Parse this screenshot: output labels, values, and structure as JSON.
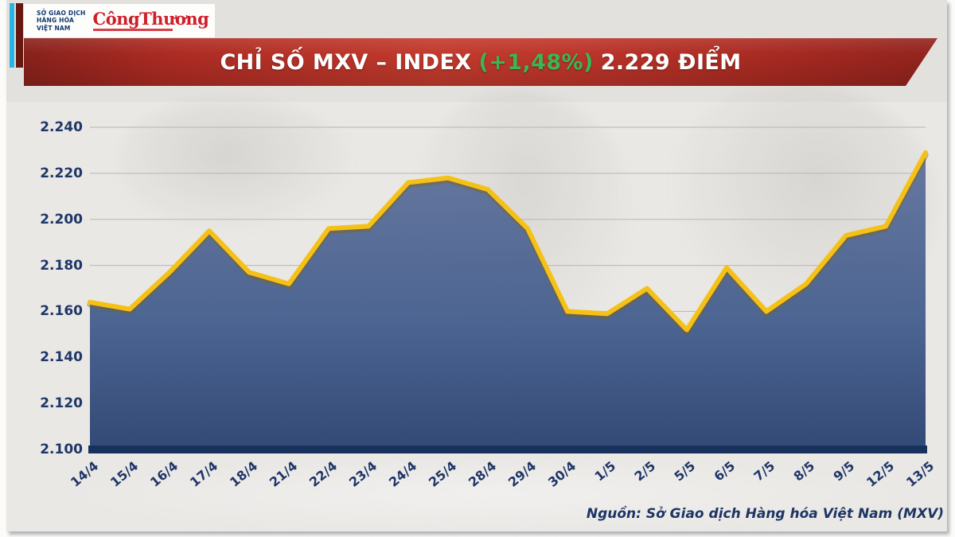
{
  "brand": {
    "mxv_logo_lines": [
      "SỞ GIAO DỊCH",
      "HÀNG HÓA",
      "VIỆT NAM"
    ],
    "congthuong_wordmark": "CôngThương",
    "accent_cyan": "#2bb3e6",
    "accent_maroon": "#64180f",
    "wordmark_red": "#cf1f2b"
  },
  "banner": {
    "title_prefix": "CHỈ SỐ MXV – INDEX",
    "change_percent": "(+1,48%)",
    "title_suffix": "2.229 ĐIỂM",
    "background_color": "#b5312a",
    "change_color": "#3db554",
    "text_color": "#ffffff"
  },
  "chart_data": {
    "type": "area",
    "title": "CHỈ SỐ MXV – INDEX (+1,48%) 2.229 ĐIỂM",
    "categories": [
      "14/4",
      "15/4",
      "16/4",
      "17/4",
      "18/4",
      "21/4",
      "22/4",
      "23/4",
      "24/4",
      "25/4",
      "28/4",
      "29/4",
      "30/4",
      "1/5",
      "2/5",
      "5/5",
      "6/5",
      "7/5",
      "8/5",
      "9/5",
      "12/5",
      "13/5"
    ],
    "values": [
      2164,
      2161,
      2177,
      2195,
      2177,
      2172,
      2196,
      2197,
      2216,
      2218,
      2213,
      2196,
      2160,
      2159,
      2170,
      2152,
      2179,
      2160,
      2172,
      2193,
      2197,
      2229
    ],
    "ylim": [
      2100,
      2240
    ],
    "ytick_step": 20,
    "ytick_labels": [
      "2.240",
      "2.220",
      "2.200",
      "2.180",
      "2.160",
      "2.140",
      "2.120",
      "2.100"
    ],
    "grid": true,
    "legend": false,
    "line_color": "#f5c117",
    "line_shadow_color": "#8a6200",
    "fill_top_color": "#60739c",
    "fill_bottom_color": "#2b4372",
    "gridline_color": "#b8b6b2",
    "axis_color": "#16325c",
    "label_color": "#1e3668"
  },
  "footer": {
    "source": "Nguồn: Sở Giao dịch Hàng hóa Việt Nam (MXV)"
  }
}
